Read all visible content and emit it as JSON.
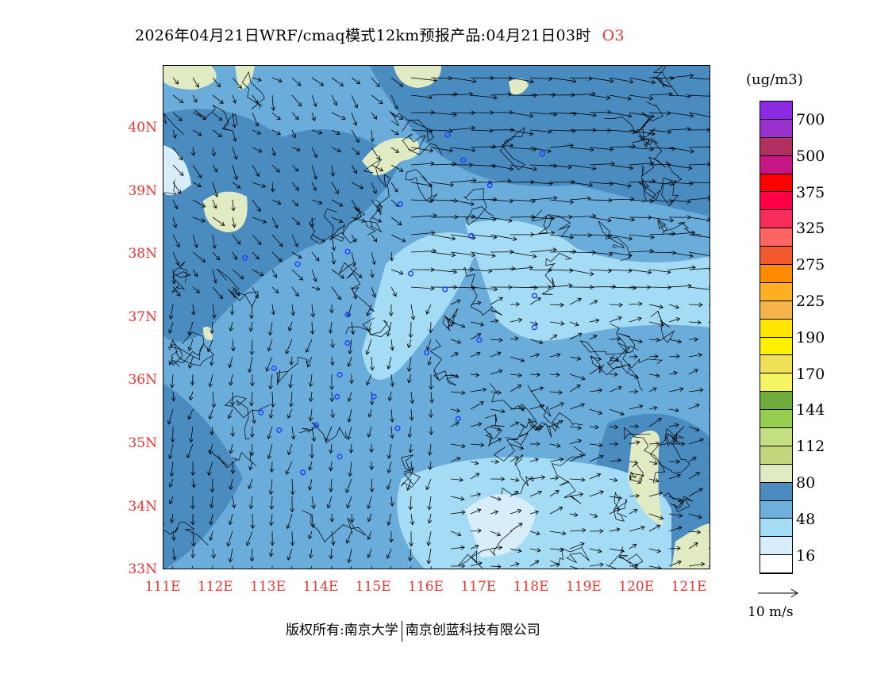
{
  "title": {
    "text": "2026年04月21日WRF/cmaq模式12km预报产品:04月21日03时",
    "species": "O3"
  },
  "map": {
    "lat_labels": [
      "40N",
      "39N",
      "38N",
      "37N",
      "36N",
      "35N",
      "34N",
      "33N"
    ],
    "lon_labels": [
      "111E",
      "112E",
      "113E",
      "114E",
      "115E",
      "116E",
      "117E",
      "118E",
      "119E",
      "120E",
      "121E"
    ],
    "stations": [
      [
        116.4,
        39.9
      ],
      [
        116.7,
        39.5
      ],
      [
        118.2,
        39.6
      ],
      [
        117.2,
        39.1
      ],
      [
        115.5,
        38.8
      ],
      [
        116.85,
        38.3
      ],
      [
        114.5,
        38.05
      ],
      [
        112.55,
        37.95
      ],
      [
        113.55,
        37.85
      ],
      [
        115.7,
        37.7
      ],
      [
        116.35,
        37.45
      ],
      [
        118.05,
        37.35
      ],
      [
        114.5,
        37.05
      ],
      [
        118.05,
        36.85
      ],
      [
        117.0,
        36.65
      ],
      [
        114.5,
        36.6
      ],
      [
        116.0,
        36.45
      ],
      [
        113.1,
        36.2
      ],
      [
        114.35,
        36.1
      ],
      [
        115.0,
        35.75
      ],
      [
        114.3,
        35.75
      ],
      [
        112.85,
        35.5
      ],
      [
        116.6,
        35.4
      ],
      [
        113.9,
        35.3
      ],
      [
        113.2,
        35.22
      ],
      [
        115.45,
        35.25
      ],
      [
        114.35,
        34.8
      ],
      [
        113.65,
        34.55
      ]
    ]
  },
  "colorbar": {
    "unit": "(ug/m3)",
    "colors": [
      "#8a2be2",
      "#9932cc",
      "#b03060",
      "#c71585",
      "#ff0000",
      "#ff0048",
      "#f52d58",
      "#ff6464",
      "#f05a2d",
      "#ff8c00",
      "#ffaf23",
      "#f5b44b",
      "#ffe600",
      "#fff000",
      "#f0e15a",
      "#f5f564",
      "#6eaa3c",
      "#96cd50",
      "#c3e182",
      "#c3d77d",
      "#e1ebc3",
      "#4a8cc0",
      "#6eb0dc",
      "#a5dcf5",
      "#d7eefa",
      "#ffffff"
    ],
    "labels": [
      "700",
      "500",
      "375",
      "325",
      "275",
      "225",
      "190",
      "170",
      "144",
      "112",
      "80",
      "48",
      "16"
    ]
  },
  "wind_legend": "10 m/s",
  "footer": {
    "left": "版权所有:南京大学",
    "right": "南京创蓝科技有限公司"
  }
}
